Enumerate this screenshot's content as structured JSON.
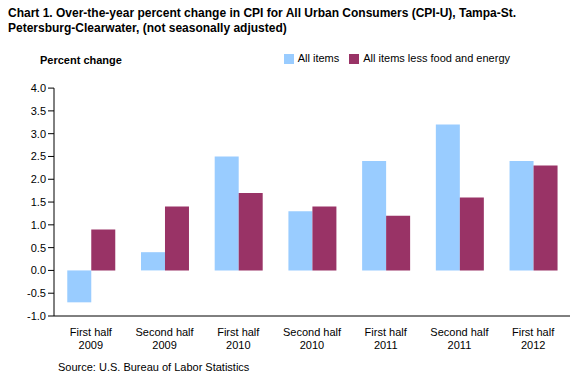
{
  "chart_data": {
    "type": "bar",
    "title": "Chart 1. Over-the-year  percent change in CPI for All Urban Consumers (CPI-U), Tampa-St. Petersburg-Clearwater,  (not seasonally adjusted)",
    "y_label": "Percent change",
    "source": "Source: U.S. Bureau of Labor Statistics",
    "categories": [
      "First half 2009",
      "Second half 2009",
      "First half 2010",
      "Second half 2010",
      "First half 2011",
      "Second half 2011",
      "First half 2012"
    ],
    "series": [
      {
        "name": "All items",
        "color": "#99ccff",
        "values": [
          -0.7,
          0.4,
          2.5,
          1.3,
          2.4,
          3.2,
          2.4
        ]
      },
      {
        "name": "All items less food and energy",
        "color": "#993366",
        "values": [
          0.9,
          1.4,
          1.7,
          1.4,
          1.2,
          1.6,
          2.3
        ]
      }
    ],
    "ylim": [
      -1,
      4
    ],
    "yticks": [
      {
        "value": -1,
        "label": "-1.0"
      },
      {
        "value": -0.5,
        "label": "-0.5"
      },
      {
        "value": 0,
        "label": "0.0"
      },
      {
        "value": 0.5,
        "label": "0.5"
      },
      {
        "value": 1,
        "label": "1.0"
      },
      {
        "value": 1.5,
        "label": "1.5"
      },
      {
        "value": 2,
        "label": "2.0"
      },
      {
        "value": 2.5,
        "label": "2.5"
      },
      {
        "value": 3,
        "label": "3.0"
      },
      {
        "value": 3.5,
        "label": "3.5"
      },
      {
        "value": 4,
        "label": "4.0"
      }
    ],
    "grid": false,
    "legend": "top"
  }
}
